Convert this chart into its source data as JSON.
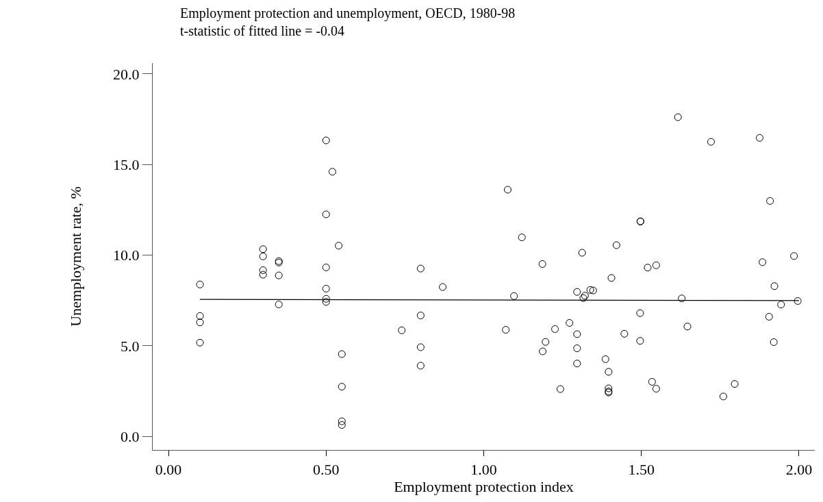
{
  "chart_data": {
    "type": "scatter",
    "title": "Employment protection and unemployment, OECD, 1980-98",
    "subtitle": "t-statistic of fitted line = -0.04",
    "xlabel": "Employment protection index",
    "ylabel": "Unemployment rate, %",
    "xlim": [
      -0.05,
      2.05
    ],
    "ylim": [
      -0.75,
      20.6
    ],
    "xticks": [
      {
        "value": 0,
        "label": "0.00"
      },
      {
        "value": 0.5,
        "label": "0.50"
      },
      {
        "value": 1,
        "label": "1.00"
      },
      {
        "value": 1.5,
        "label": "1.50"
      },
      {
        "value": 2,
        "label": "2.00"
      }
    ],
    "yticks": [
      {
        "value": 0,
        "label": "0.0"
      },
      {
        "value": 5,
        "label": "5.0"
      },
      {
        "value": 10,
        "label": "10.0"
      },
      {
        "value": 15,
        "label": "15.0"
      },
      {
        "value": 20,
        "label": "20.0"
      }
    ],
    "marker": "circle",
    "series": [
      {
        "color": "#000000",
        "x": [
          0.1,
          0.1,
          0.1,
          0.1,
          0.3,
          0.3,
          0.3,
          0.3,
          0.35,
          0.35,
          0.35,
          0.35,
          0.5,
          0.5,
          0.5,
          0.5,
          0.5,
          0.5,
          0.52,
          0.54,
          0.55,
          0.55,
          0.55,
          0.55,
          0.74,
          0.8,
          0.8,
          0.8,
          0.8,
          0.87,
          1.076,
          1.616,
          1.721,
          1.875,
          1.908,
          1.497,
          1.497,
          1.121,
          1.312,
          1.421,
          1.186,
          1.52,
          1.547,
          1.884,
          1.984,
          1.096,
          1.07,
          1.296,
          1.321,
          1.316,
          1.338,
          1.347,
          1.405,
          1.628,
          1.922,
          1.996,
          1.943,
          1.905,
          1.496,
          1.272,
          1.226,
          1.296,
          1.446,
          1.646,
          1.196,
          1.187,
          1.296,
          1.496,
          1.92,
          1.296,
          1.386,
          1.396,
          1.243,
          1.396,
          1.396,
          1.396,
          1.534,
          1.547,
          1.76,
          1.796
        ],
        "values": [
          8.38,
          6.64,
          6.29,
          5.17,
          10.33,
          9.93,
          9.17,
          8.92,
          9.67,
          9.59,
          8.88,
          7.28,
          16.33,
          12.25,
          9.32,
          8.15,
          7.59,
          7.42,
          14.6,
          10.52,
          4.54,
          2.74,
          0.83,
          0.63,
          5.85,
          9.26,
          6.67,
          4.92,
          3.9,
          8.24,
          13.61,
          17.61,
          16.25,
          16.47,
          12.99,
          11.85,
          11.87,
          10.98,
          10.13,
          10.55,
          9.51,
          9.31,
          9.44,
          9.61,
          9.95,
          7.74,
          5.88,
          7.97,
          7.76,
          7.63,
          8.08,
          8.05,
          8.74,
          7.61,
          8.29,
          7.47,
          7.27,
          6.6,
          6.8,
          6.26,
          5.92,
          5.64,
          5.66,
          6.06,
          5.21,
          4.69,
          4.86,
          5.27,
          5.2,
          4.02,
          4.26,
          3.56,
          2.61,
          2.65,
          2.42,
          2.48,
          3.01,
          2.63,
          2.2,
          2.89
        ]
      },
      {
        "type": "line",
        "color": "#000000",
        "marker": "none",
        "x": [
          0.1,
          2.0
        ],
        "values": [
          7.56,
          7.49
        ]
      }
    ]
  }
}
